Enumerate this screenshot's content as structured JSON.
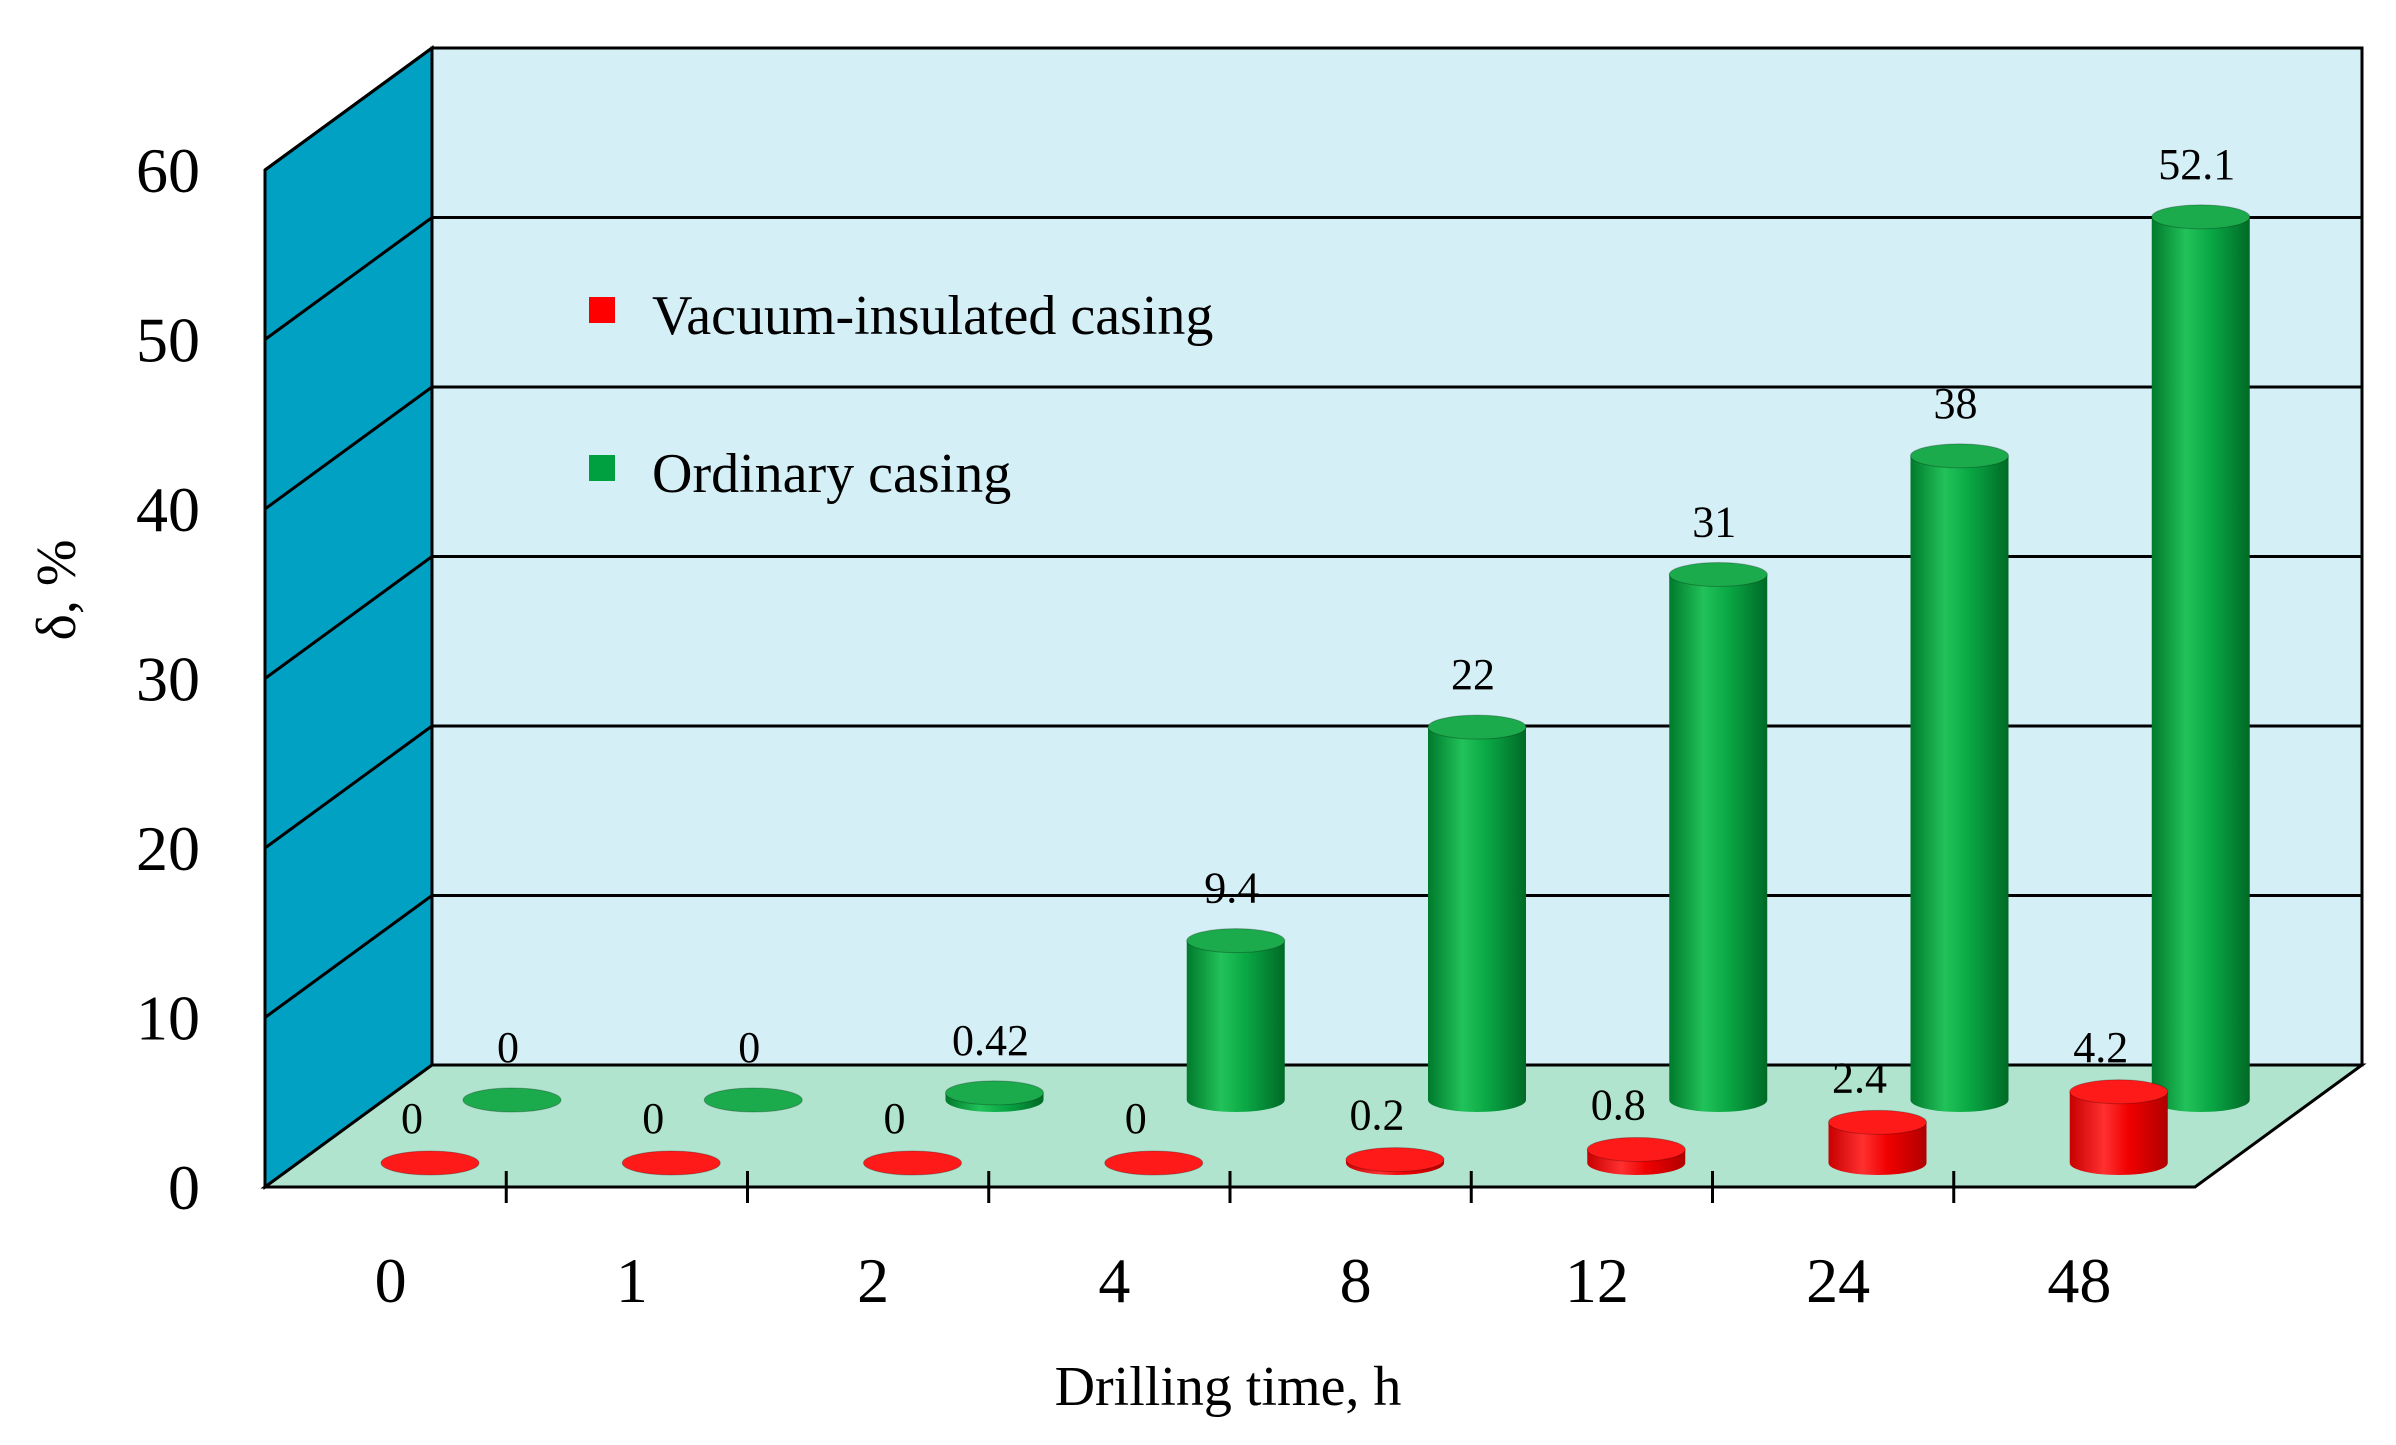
{
  "chart_data": {
    "type": "bar",
    "style": "3d-cylinder",
    "title": "",
    "xlabel": "Drilling time, h",
    "ylabel": "δ, %",
    "ylim": [
      0,
      60
    ],
    "yticks": [
      "0",
      "10",
      "20",
      "30",
      "40",
      "50",
      "60"
    ],
    "categories": [
      "0",
      "1",
      "2",
      "4",
      "8",
      "12",
      "24",
      "48"
    ],
    "series": [
      {
        "name": "Vacuum-insulated casing",
        "color": "#ff0000",
        "values": [
          0,
          0,
          0,
          0,
          0.2,
          0.8,
          2.4,
          4.2
        ],
        "labels": [
          "0",
          "0",
          "0",
          "0",
          "0.2",
          "0.8",
          "2.4",
          "4.2"
        ]
      },
      {
        "name": "Ordinary casing",
        "color": "#00a040",
        "values": [
          0,
          0,
          0.42,
          9.4,
          22,
          31,
          38,
          52.1
        ],
        "labels": [
          "0",
          "0",
          "0.42",
          "9.4",
          "22",
          "31",
          "38",
          "52.1"
        ]
      }
    ],
    "legend_position": "top-left",
    "grid": true
  },
  "colors": {
    "back_wall": "#d5eff6",
    "side_wall": "#00a1c2",
    "floor": "#b0e4cf"
  }
}
